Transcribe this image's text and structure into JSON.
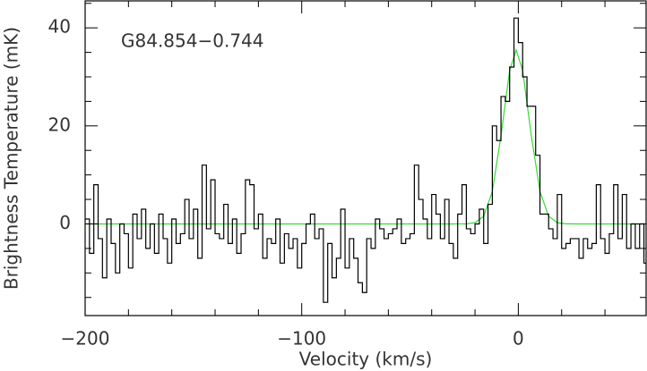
{
  "chart_data": {
    "type": "step",
    "xlabel": "Velocity (km/s)",
    "ylabel": "Brightness Temperature (mK)",
    "annotation": "G84.854−0.744",
    "xlim": [
      -200,
      59
    ],
    "ylim": [
      -18.7,
      45.5
    ],
    "xticks": [
      {
        "value": -200,
        "label": "−200"
      },
      {
        "value": -100,
        "label": "−100"
      },
      0
    ],
    "yticks": [
      0,
      20,
      40
    ],
    "xminorticks": [
      -180,
      -160,
      -140,
      -120,
      -80,
      -60,
      -40,
      -20,
      20,
      40
    ],
    "yminorticks": [
      -15,
      -10,
      -5,
      5,
      10,
      15,
      25,
      30,
      35,
      45
    ],
    "series": [
      {
        "type": "step",
        "color": "#000000",
        "x": [
          -199,
          -197,
          -195,
          -193,
          -191,
          -189,
          -187,
          -185,
          -183,
          -181,
          -179,
          -177,
          -175,
          -173,
          -171,
          -169,
          -167,
          -165,
          -163,
          -161,
          -159,
          -157,
          -155,
          -153,
          -151,
          -149,
          -147,
          -145,
          -143,
          -141,
          -139,
          -137,
          -135,
          -133,
          -131,
          -129,
          -127,
          -125,
          -123,
          -121,
          -119,
          -117,
          -115,
          -113,
          -111,
          -109,
          -107,
          -105,
          -103,
          -101,
          -99,
          -97,
          -95,
          -93,
          -91,
          -89,
          -87,
          -85,
          -83,
          -81,
          -79,
          -77,
          -75,
          -73,
          -71,
          -69,
          -67,
          -65,
          -63,
          -61,
          -59,
          -57,
          -55,
          -53,
          -51,
          -49,
          -47,
          -45,
          -43,
          -41,
          -39,
          -37,
          -35,
          -33,
          -31,
          -29,
          -27,
          -25,
          -23,
          -21,
          -19,
          -17,
          -15,
          -13,
          -11,
          -9,
          -7,
          -5,
          -3,
          -1,
          1,
          3,
          5,
          7,
          9,
          11,
          13,
          15,
          17,
          19,
          21,
          23,
          25,
          27,
          29,
          31,
          33,
          35,
          37,
          39,
          41,
          43,
          45,
          47,
          49,
          51,
          53,
          55,
          57,
          59
        ],
        "values": [
          1,
          -6,
          8,
          -3,
          -11,
          1,
          -4,
          -10,
          0,
          -2,
          -9,
          2,
          -3,
          3,
          -5,
          0,
          -6,
          2,
          -3,
          -8,
          1,
          -4,
          -2,
          5,
          -3,
          3,
          -7,
          12,
          -1,
          9,
          -2,
          -3,
          4,
          -4,
          1,
          -6,
          -2,
          9,
          8,
          -1,
          2,
          -7,
          -3,
          -4,
          1,
          -8,
          -2,
          -5,
          -3,
          -9,
          -4,
          0,
          2,
          -3,
          -1,
          -16,
          -4,
          -11,
          -7,
          3,
          -9,
          -3,
          -7,
          -12,
          -14,
          -3,
          -5,
          1,
          -1,
          -3,
          -2,
          -1,
          1,
          -4,
          -3,
          -2,
          12,
          5,
          1,
          -3,
          6,
          2,
          -3,
          5,
          -4,
          -7,
          2,
          8,
          -1,
          -2,
          0,
          3,
          -4,
          4,
          20,
          17,
          26,
          25,
          32,
          42,
          37,
          30,
          24,
          24,
          14,
          2,
          2,
          -1,
          -3,
          6,
          -5,
          -4,
          -3,
          -3,
          -7,
          -3,
          -5,
          -4,
          8,
          -3,
          -6,
          -2,
          8,
          -3,
          6,
          -5,
          0,
          -5,
          0,
          -8
        ]
      },
      {
        "type": "line",
        "color": "#33dd33",
        "x": [
          -200,
          -30,
          -24,
          -20,
          -16,
          -12,
          -8,
          -4,
          -1,
          2,
          6,
          10,
          14,
          18,
          22,
          28,
          59
        ],
        "values": [
          0,
          0,
          0.02,
          0.24,
          1.56,
          6.6,
          18.0,
          31.3,
          35.5,
          31.3,
          18.0,
          6.6,
          1.56,
          0.24,
          0.02,
          0,
          0
        ]
      }
    ]
  }
}
